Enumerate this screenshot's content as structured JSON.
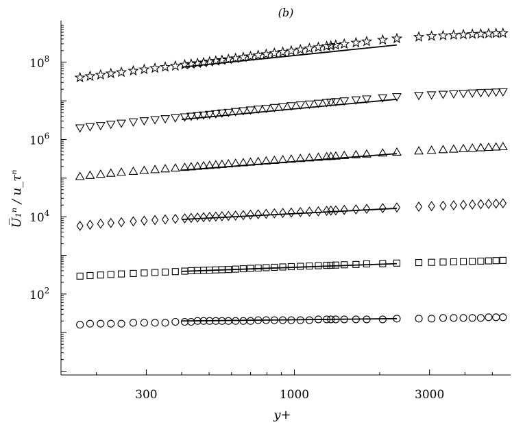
{
  "chart_data": {
    "type": "scatter",
    "title": "(b)",
    "xlabel": "y+",
    "ylabel": "U̅₁ⁿ / u_τⁿ",
    "x_scale": "log",
    "y_scale": "log",
    "xlim": [
      150,
      5800
    ],
    "ylim": [
      0.8,
      1200000000
    ],
    "x_ticks": [
      300,
      1000,
      3000
    ],
    "x_tick_labels": [
      "300",
      "1000",
      "3000"
    ],
    "y_ticks": [
      100,
      10000,
      1000000,
      100000000
    ],
    "y_tick_labels": [
      {
        "base": "10",
        "exp": "2"
      },
      {
        "base": "10",
        "exp": "4"
      },
      {
        "base": "10",
        "exp": "6"
      },
      {
        "base": "10",
        "exp": "8"
      }
    ],
    "x": [
      175,
      190,
      207,
      225,
      245,
      270,
      295,
      322,
      350,
      380,
      410,
      432,
      455,
      478,
      502,
      528,
      555,
      585,
      620,
      660,
      700,
      745,
      795,
      850,
      910,
      975,
      1050,
      1130,
      1215,
      1300,
      1345,
      1400,
      1500,
      1650,
      1800,
      2050,
      2300,
      2750,
      3050,
      3350,
      3650,
      3950,
      4250,
      4550,
      4850,
      5150,
      5450
    ],
    "fit_range": [
      400,
      2300
    ],
    "series": [
      {
        "marker": "circle",
        "values": [
          16,
          17,
          17,
          17,
          17,
          18,
          18,
          18,
          18,
          19,
          19,
          19,
          20,
          20,
          20,
          20,
          20,
          20,
          20,
          20,
          20,
          21,
          21,
          21,
          21,
          21,
          21,
          21,
          22,
          22,
          22,
          22,
          22,
          22,
          22,
          22,
          23,
          23,
          23,
          24,
          24,
          24,
          24,
          24,
          25,
          25,
          25
        ],
        "fit": [
          20,
          23
        ]
      },
      {
        "marker": "square",
        "values": [
          290,
          300,
          310,
          320,
          330,
          340,
          350,
          360,
          370,
          380,
          390,
          400,
          405,
          410,
          415,
          420,
          425,
          430,
          440,
          450,
          460,
          470,
          480,
          490,
          500,
          510,
          520,
          530,
          540,
          550,
          555,
          560,
          570,
          580,
          600,
          610,
          630,
          650,
          660,
          670,
          680,
          690,
          700,
          710,
          720,
          730,
          740
        ],
        "fit": [
          385,
          610
        ]
      },
      {
        "marker": "diamond",
        "values": [
          5800,
          6200,
          6600,
          6900,
          7200,
          7600,
          7900,
          8200,
          8500,
          8800,
          9100,
          9300,
          9500,
          9700,
          9900,
          10100,
          10300,
          10500,
          10700,
          11000,
          11300,
          11600,
          11900,
          12200,
          12500,
          12800,
          13200,
          13500,
          13800,
          14200,
          14400,
          14600,
          15000,
          15500,
          16000,
          16700,
          17400,
          18200,
          18800,
          19300,
          19800,
          20300,
          20700,
          21100,
          21500,
          21900,
          22300
        ],
        "fit": [
          8500,
          16500
        ]
      },
      {
        "marker": "triangle",
        "values": [
          110000,
          118000,
          126000,
          134000,
          142000,
          150000,
          158000,
          166000,
          174000,
          182000,
          190000,
          196000,
          202000,
          208000,
          214000,
          220000,
          227000,
          234000,
          242000,
          250000,
          259000,
          268000,
          278000,
          288000,
          299000,
          310000,
          322000,
          334000,
          346000,
          358000,
          364000,
          372000,
          385000,
          403000,
          420000,
          446000,
          470000,
          505000,
          525000,
          545000,
          563000,
          580000,
          596000,
          611000,
          625000,
          638000,
          651000
        ],
        "fit": [
          160000,
          430000
        ]
      },
      {
        "marker": "nabla",
        "values": [
          2000000,
          2150000,
          2300000,
          2480000,
          2650000,
          2850000,
          3050000,
          3250000,
          3450000,
          3650000,
          3850000,
          4000000,
          4150000,
          4300000,
          4480000,
          4650000,
          4850000,
          5050000,
          5300000,
          5550000,
          5800000,
          6100000,
          6400000,
          6750000,
          7100000,
          7450000,
          7850000,
          8250000,
          8650000,
          9100000,
          9300000,
          9550000,
          10000000,
          10600000,
          11200000,
          12000000,
          12800000,
          13800000,
          14300000,
          14800000,
          15200000,
          15600000,
          16000000,
          16300000,
          16600000,
          16900000,
          17200000
        ],
        "fit": [
          3300000,
          11000000
        ]
      },
      {
        "marker": "star",
        "values": [
          40000000,
          43500000,
          47000000,
          51000000,
          55000000,
          60000000,
          65000000,
          70000000,
          75000000,
          80000000,
          86000000,
          90000000,
          94000000,
          98000000,
          103000000,
          108000000,
          113000000,
          119000000,
          126000000,
          134000000,
          142000000,
          151000000,
          161000000,
          172000000,
          184000000,
          197000000,
          212000000,
          228000000,
          244000000,
          260000000,
          268000000,
          278000000,
          296000000,
          320000000,
          344000000,
          378000000,
          410000000,
          452000000,
          472000000,
          490000000,
          506000000,
          520000000,
          532000000,
          542000000,
          551000000,
          559000000,
          566000000
        ],
        "fit": [
          75000000,
          280000000
        ]
      }
    ]
  }
}
